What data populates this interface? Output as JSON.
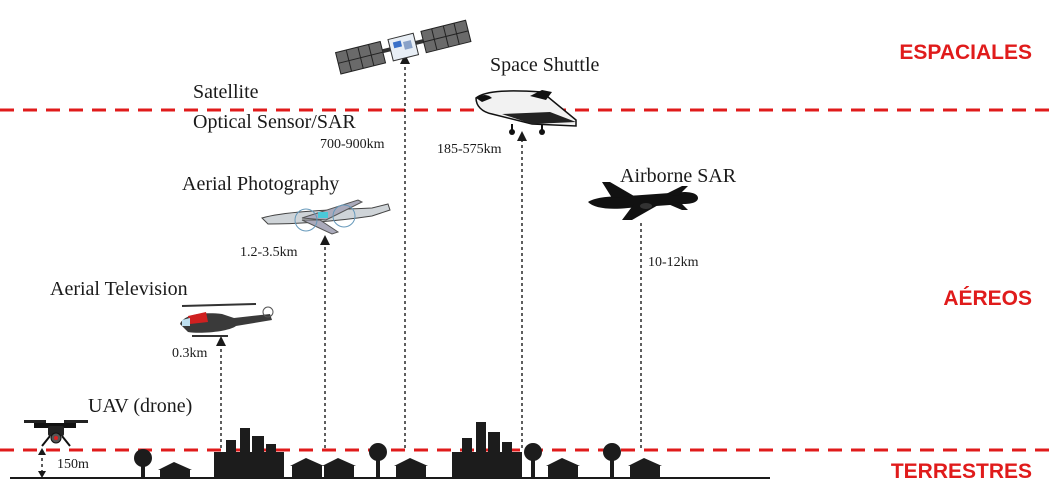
{
  "zones": {
    "space": "ESPACIALES",
    "aerial": "AÉREOS",
    "terrestrial": "TERRESTRES"
  },
  "platforms": {
    "uav": {
      "name": "UAV (drone)",
      "altitude": "150m"
    },
    "aerial_television": {
      "name": "Aerial Television",
      "altitude": "0.3km"
    },
    "aerial_photography": {
      "name": "Aerial Photography",
      "altitude": "1.2-3.5km"
    },
    "satellite": {
      "name_line1": "Satellite",
      "name_line2": "Optical Sensor/SAR",
      "altitude": "700-900km"
    },
    "space_shuttle": {
      "name": "Space Shuttle",
      "altitude": "185-575km"
    },
    "airborne_sar": {
      "name": "Airborne SAR",
      "altitude": "10-12km"
    }
  },
  "colors": {
    "zone_line": "#e01b1b",
    "ink": "#1a1a1a"
  },
  "icons": [
    "drone-icon",
    "helicopter-icon",
    "survey-plane-icon",
    "satellite-icon",
    "space-shuttle-icon",
    "jet-plane-icon",
    "city-skyline-icon",
    "tree-icon",
    "house-icon"
  ]
}
